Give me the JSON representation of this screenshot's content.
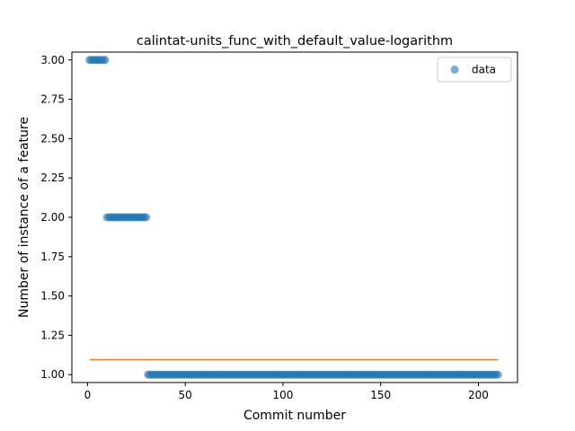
{
  "chart_data": {
    "type": "scatter",
    "title": "calintat-units_func_with_default_value-logarithm",
    "xlabel": "Commit number",
    "ylabel": "Number of instance of a feature",
    "xlim": [
      -8,
      220
    ],
    "ylim": [
      0.95,
      3.05
    ],
    "xticks": [
      0,
      50,
      100,
      150,
      200
    ],
    "yticks": [
      1.0,
      1.25,
      1.5,
      1.75,
      2.0,
      2.25,
      2.5,
      2.75,
      3.0
    ],
    "ytick_labels": [
      "1.00",
      "1.25",
      "1.50",
      "1.75",
      "2.00",
      "2.25",
      "2.50",
      "2.75",
      "3.00"
    ],
    "legend": {
      "placement": "top-right",
      "entries": [
        "data"
      ]
    },
    "colors": {
      "points": "#1f77b4",
      "fit_line": "#ff7f0e"
    },
    "grid": false,
    "series": [
      {
        "name": "data",
        "segments": [
          {
            "x_start": 1,
            "x_end": 9,
            "y": 3
          },
          {
            "x_start": 10,
            "x_end": 30,
            "y": 2
          },
          {
            "x_start": 31,
            "x_end": 210,
            "y": 1
          }
        ]
      }
    ],
    "fit_line": {
      "x": [
        1,
        210
      ],
      "y": [
        1.095,
        1.095
      ]
    }
  }
}
